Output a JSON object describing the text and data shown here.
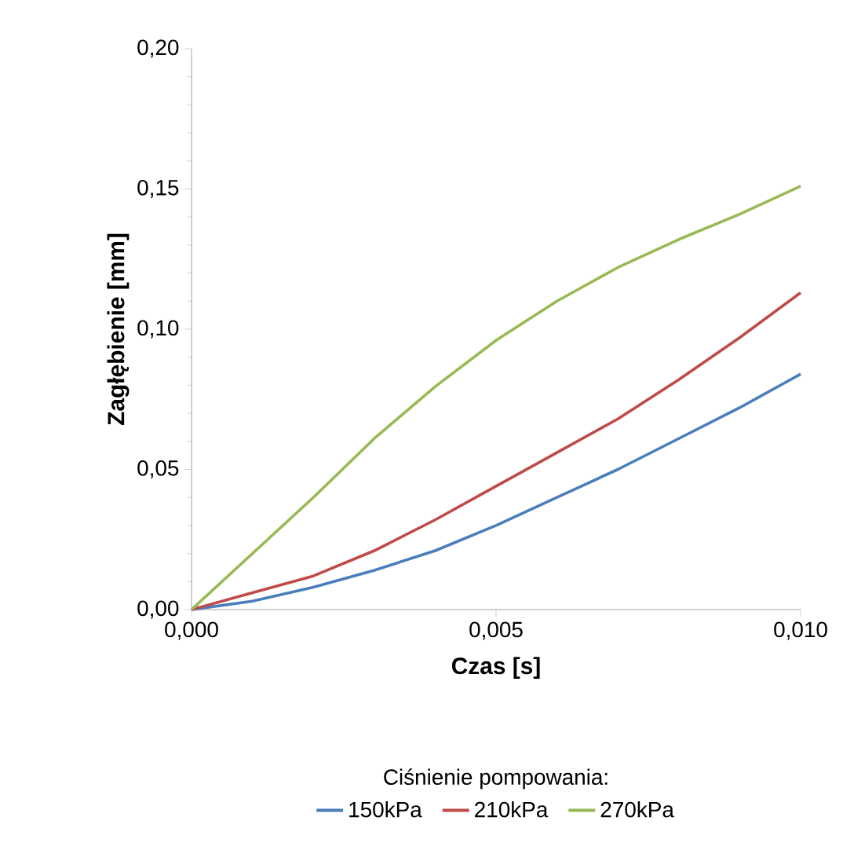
{
  "chart_data": {
    "type": "line",
    "xlabel": "Czas [s]",
    "ylabel": "Zagłębienie [mm]",
    "legend_title": "Ciśnienie pompowania:",
    "legend": "bottom",
    "grid": false,
    "marker": "none",
    "line_style": "solid",
    "x": [
      0,
      0.001,
      0.002,
      0.003,
      0.004,
      0.005,
      0.006,
      0.007,
      0.008,
      0.009,
      0.01
    ],
    "xlim": [
      0,
      0.01
    ],
    "xticks": [
      {
        "value": 0,
        "label": "0,000"
      },
      {
        "value": 0.005,
        "label": "0,005"
      },
      {
        "value": 0.01,
        "label": "0,010"
      }
    ],
    "ylim": [
      0,
      0.2
    ],
    "yticks": [
      {
        "value": 0,
        "label": "0,00"
      },
      {
        "value": 0.05,
        "label": "0,05"
      },
      {
        "value": 0.1,
        "label": "0,10"
      },
      {
        "value": 0.15,
        "label": "0,15"
      },
      {
        "value": 0.2,
        "label": "0,20"
      }
    ],
    "series": [
      {
        "name": "150kPa",
        "color": "#4a7ebb",
        "values": [
          0,
          0.003,
          0.008,
          0.014,
          0.021,
          0.03,
          0.04,
          0.05,
          0.061,
          0.072,
          0.084
        ]
      },
      {
        "name": "210kPa",
        "color": "#be4b48",
        "values": [
          0,
          0.006,
          0.012,
          0.021,
          0.032,
          0.044,
          0.056,
          0.068,
          0.082,
          0.097,
          0.113
        ]
      },
      {
        "name": "270kPa",
        "color": "#98b954",
        "values": [
          0,
          0.02,
          0.04,
          0.061,
          0.0795,
          0.096,
          0.11,
          0.122,
          0.132,
          0.141,
          0.151
        ]
      }
    ]
  }
}
